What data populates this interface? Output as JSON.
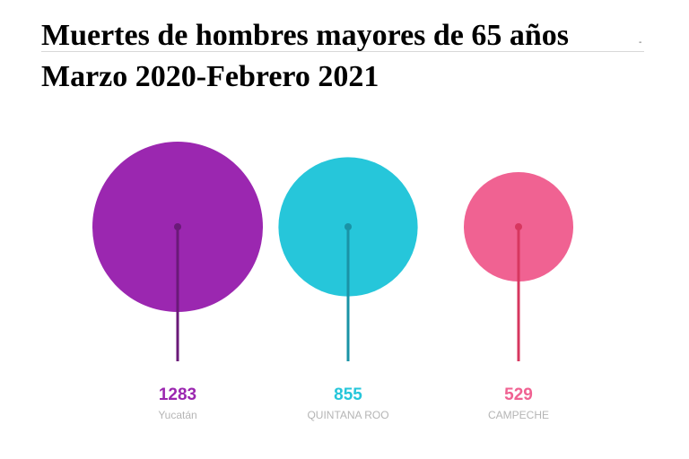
{
  "title_line1": "Muertes de hombres mayores de 65 años",
  "title_line2": "Marzo 2020-Febrero 2021",
  "title_mark": "-",
  "chart_data": {
    "type": "bubble",
    "categories": [
      "Yucatán",
      "QUINTANA ROO",
      "CAMPECHE"
    ],
    "values": [
      1283,
      855,
      529
    ],
    "value_labels": [
      "1283",
      "855",
      "529"
    ],
    "colors": [
      "#9b27b0",
      "#26c6da",
      "#f06292"
    ],
    "stem_colors": [
      "#6a1a78",
      "#1a93a6",
      "#d7375f"
    ]
  }
}
